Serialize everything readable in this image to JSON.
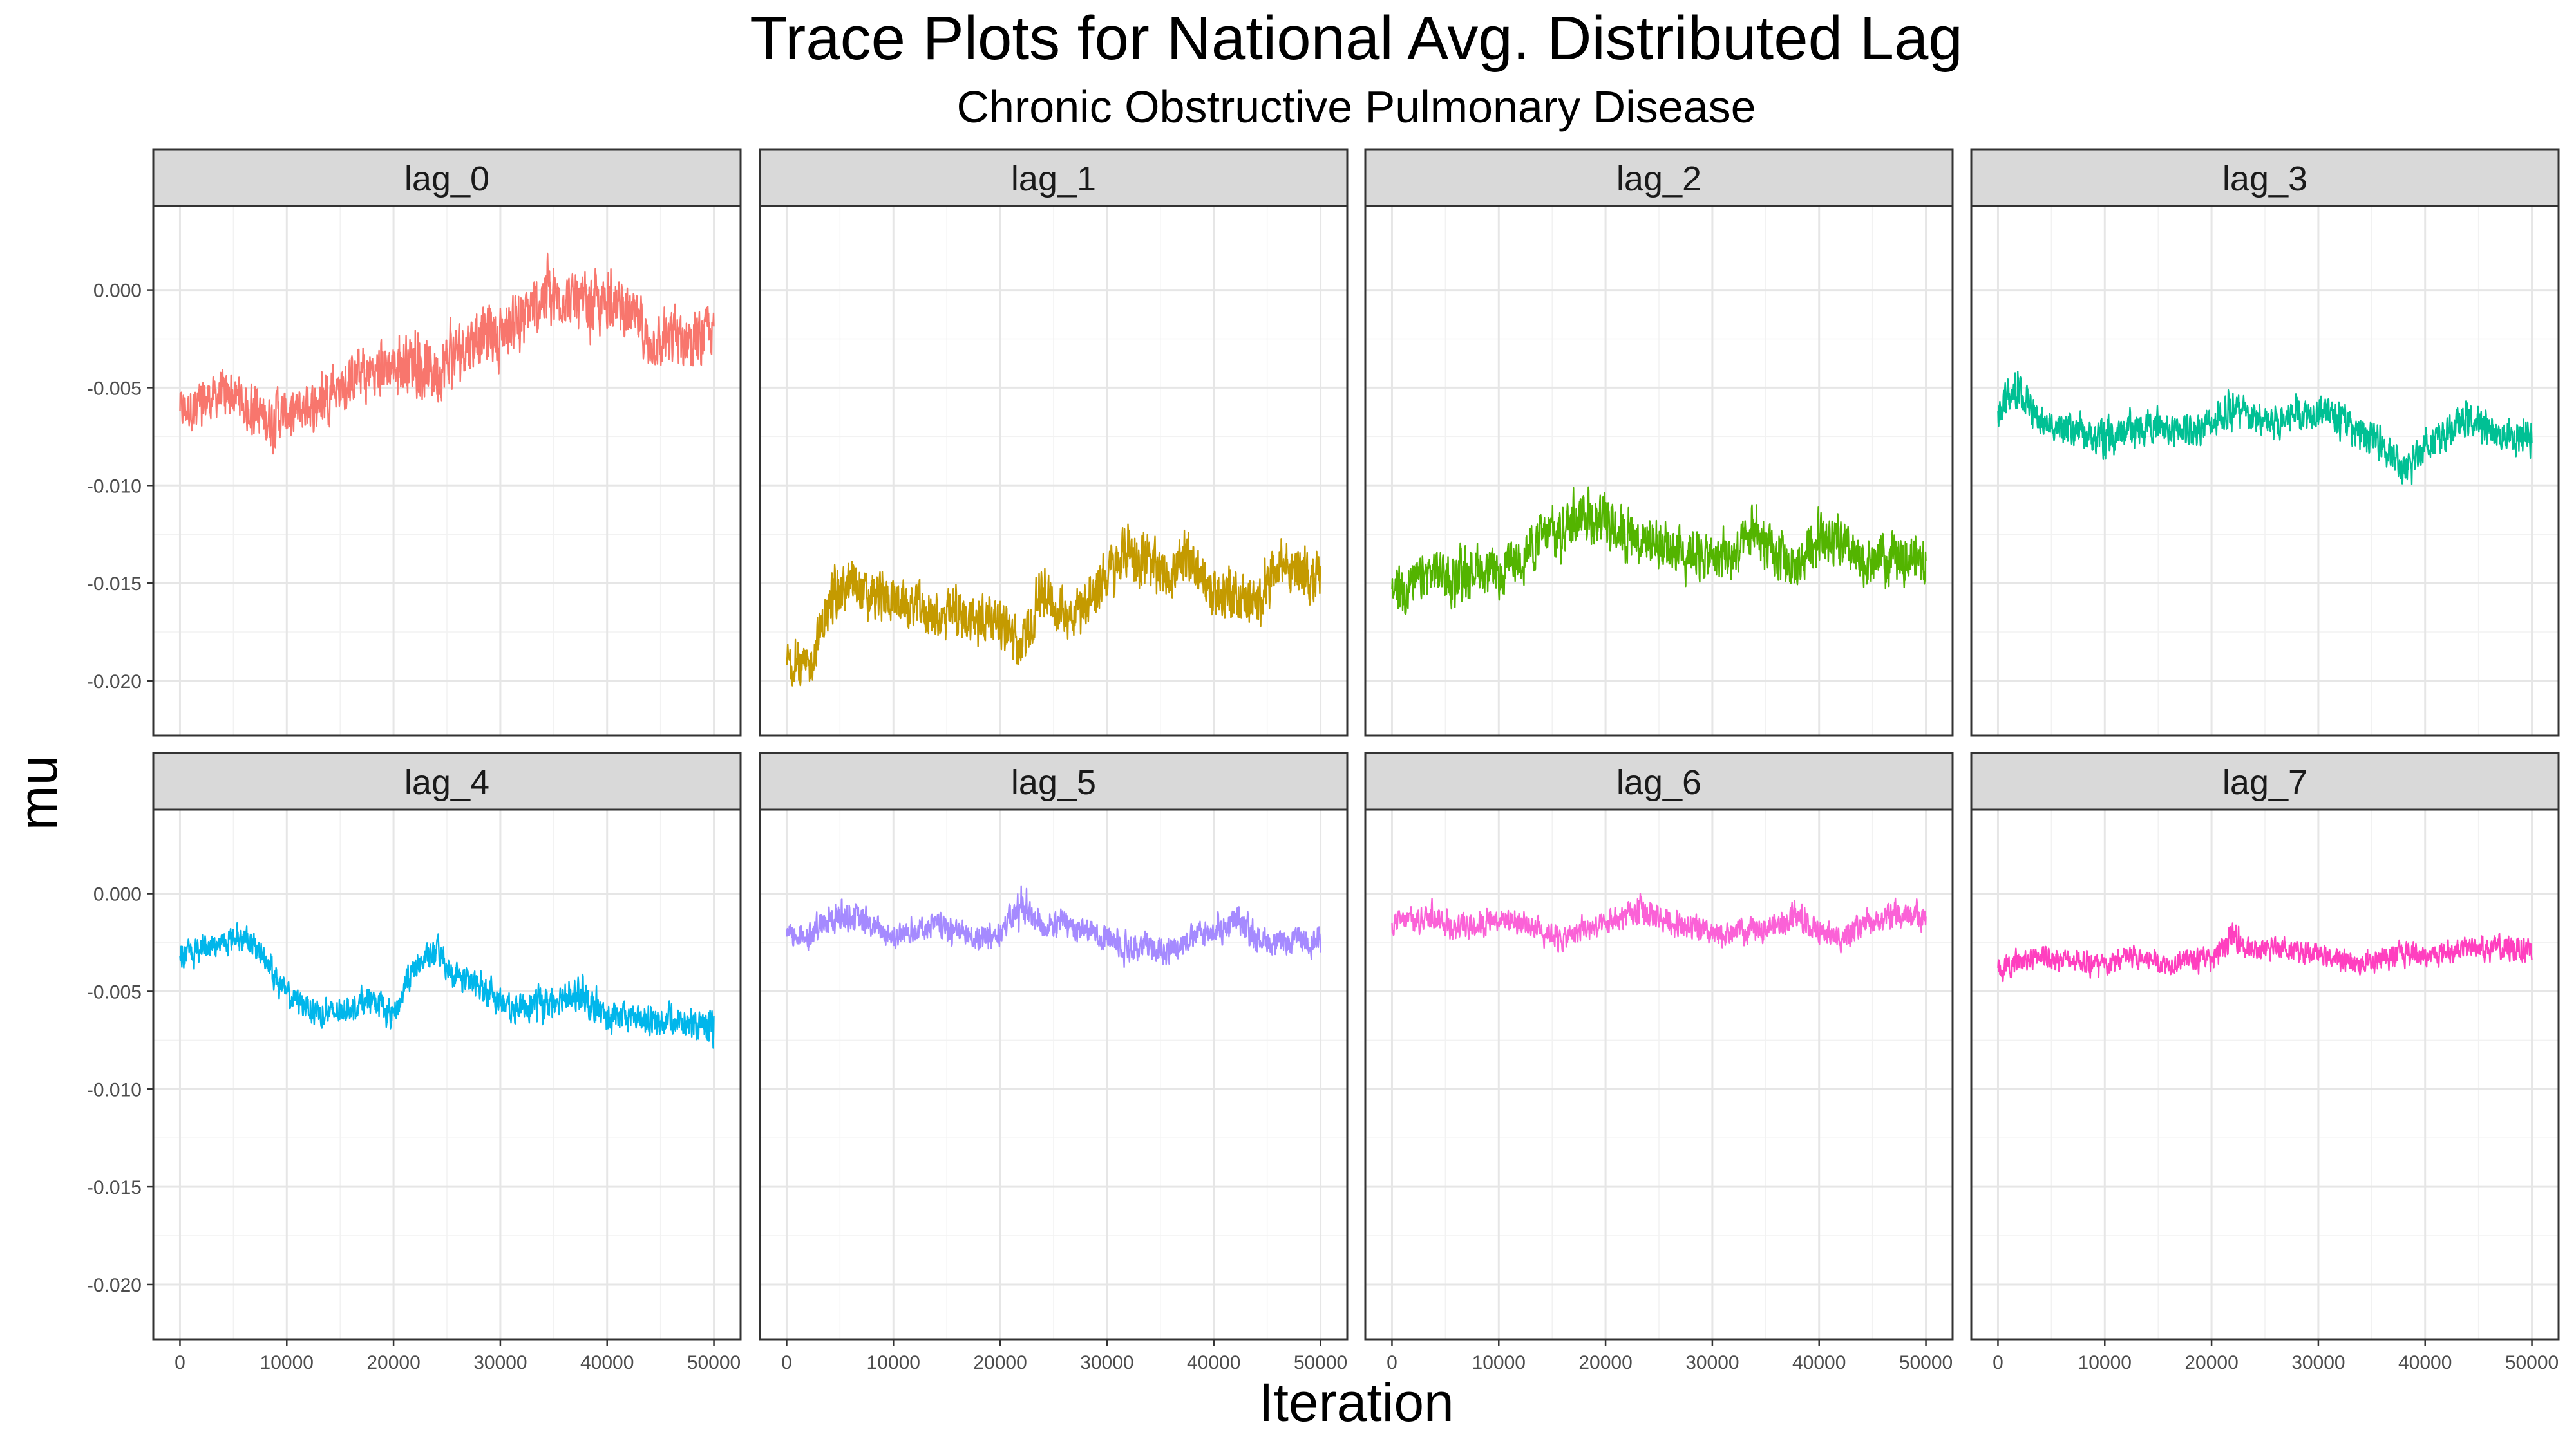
{
  "title": "Trace Plots for National Avg. Distributed Lag",
  "subtitle": "Chronic Obstructive Pulmonary Disease",
  "chart_data": {
    "type": "line",
    "layout": "facet-grid 2x4",
    "grid": true,
    "xlabel": "Iteration",
    "ylabel": "mu",
    "xlim": [
      -2500,
      52500
    ],
    "ylim": [
      -0.0228,
      0.0043
    ],
    "xticks": [
      0,
      10000,
      20000,
      30000,
      40000,
      50000
    ],
    "xtick_labels": [
      "0",
      "10000",
      "20000",
      "30000",
      "40000",
      "50000"
    ],
    "yticks": [
      0.0,
      -0.005,
      -0.01,
      -0.015,
      -0.02
    ],
    "ytick_labels": [
      "0.000",
      "-0.005",
      "-0.010",
      "-0.015",
      "-0.020"
    ],
    "series": [
      {
        "name": "lag_0",
        "color": "#F8766D",
        "x": [
          0,
          2000,
          4000,
          6000,
          8000,
          10000,
          12000,
          14000,
          16000,
          18000,
          20000,
          22000,
          24000,
          26000,
          28000,
          30000,
          32000,
          34000,
          36000,
          38000,
          40000,
          42000,
          44000,
          46000,
          48000,
          50000
        ],
        "mean": [
          -0.0062,
          -0.0058,
          -0.0053,
          -0.0057,
          -0.0066,
          -0.0063,
          -0.006,
          -0.0052,
          -0.0046,
          -0.0041,
          -0.0039,
          -0.0036,
          -0.0042,
          -0.003,
          -0.0023,
          -0.0022,
          -0.0014,
          -0.0003,
          -0.0003,
          -0.0011,
          -0.0006,
          -0.0012,
          -0.0027,
          -0.0024,
          -0.0023,
          -0.0022
        ],
        "min": [
          -0.0083,
          -0.008,
          -0.0075,
          -0.0079,
          -0.0095,
          -0.0088,
          -0.0084,
          -0.0074,
          -0.0069,
          -0.0064,
          -0.0065,
          -0.0066,
          -0.0077,
          -0.0058,
          -0.0055,
          -0.0051,
          -0.0041,
          -0.0033,
          -0.003,
          -0.0037,
          -0.0032,
          -0.0038,
          -0.0052,
          -0.0056,
          -0.0051,
          -0.0044
        ],
        "max": [
          -0.004,
          -0.0036,
          -0.0032,
          -0.0036,
          -0.0043,
          -0.004,
          -0.0038,
          -0.003,
          -0.0022,
          -0.0016,
          -0.0011,
          -0.0006,
          -0.001,
          -0.0002,
          0.0005,
          0.0007,
          0.0011,
          0.0028,
          0.0022,
          0.0016,
          0.0021,
          0.0016,
          -0.0003,
          0.0002,
          0.0002,
          0.0001
        ]
      },
      {
        "name": "lag_1",
        "color": "#C49A00",
        "x": [
          0,
          2000,
          4000,
          6000,
          8000,
          10000,
          12000,
          14000,
          16000,
          18000,
          20000,
          22000,
          24000,
          26000,
          28000,
          30000,
          32000,
          34000,
          36000,
          38000,
          40000,
          42000,
          44000,
          46000,
          48000,
          50000
        ],
        "mean": [
          -0.0188,
          -0.0195,
          -0.016,
          -0.0152,
          -0.0158,
          -0.0158,
          -0.0163,
          -0.0169,
          -0.0166,
          -0.017,
          -0.0167,
          -0.0182,
          -0.0155,
          -0.0165,
          -0.016,
          -0.0147,
          -0.0133,
          -0.0143,
          -0.0145,
          -0.0138,
          -0.0155,
          -0.0155,
          -0.016,
          -0.014,
          -0.0145,
          -0.0148
        ],
        "min": [
          -0.0205,
          -0.0218,
          -0.0182,
          -0.0175,
          -0.018,
          -0.0181,
          -0.0184,
          -0.019,
          -0.0188,
          -0.0192,
          -0.0188,
          -0.0205,
          -0.0177,
          -0.0187,
          -0.0182,
          -0.017,
          -0.0158,
          -0.0167,
          -0.0167,
          -0.0162,
          -0.0177,
          -0.0179,
          -0.0182,
          -0.0162,
          -0.0168,
          -0.0172
        ],
        "max": [
          -0.017,
          -0.0172,
          -0.0135,
          -0.0125,
          -0.0135,
          -0.0135,
          -0.014,
          -0.0147,
          -0.0144,
          -0.0148,
          -0.0145,
          -0.016,
          -0.013,
          -0.0142,
          -0.0137,
          -0.0125,
          -0.0102,
          -0.012,
          -0.0122,
          -0.0113,
          -0.0132,
          -0.0131,
          -0.0138,
          -0.0118,
          -0.0122,
          -0.0126
        ]
      },
      {
        "name": "lag_2",
        "color": "#53B400",
        "x": [
          0,
          2000,
          4000,
          6000,
          8000,
          10000,
          12000,
          14000,
          16000,
          18000,
          20000,
          22000,
          24000,
          26000,
          28000,
          30000,
          32000,
          34000,
          36000,
          38000,
          40000,
          42000,
          44000,
          46000,
          48000,
          50000
        ],
        "mean": [
          -0.0153,
          -0.015,
          -0.0143,
          -0.0148,
          -0.0141,
          -0.0147,
          -0.0137,
          -0.0126,
          -0.0122,
          -0.0112,
          -0.0118,
          -0.0125,
          -0.0128,
          -0.0132,
          -0.0133,
          -0.0137,
          -0.0136,
          -0.0123,
          -0.0138,
          -0.0142,
          -0.0125,
          -0.0131,
          -0.014,
          -0.0138,
          -0.0135,
          -0.014
        ],
        "min": [
          -0.0176,
          -0.0173,
          -0.0165,
          -0.017,
          -0.0163,
          -0.017,
          -0.016,
          -0.015,
          -0.0146,
          -0.0136,
          -0.014,
          -0.0148,
          -0.015,
          -0.0155,
          -0.0156,
          -0.016,
          -0.0159,
          -0.0146,
          -0.0162,
          -0.0166,
          -0.0148,
          -0.0154,
          -0.0163,
          -0.016,
          -0.0158,
          -0.0162
        ],
        "max": [
          -0.013,
          -0.0128,
          -0.0121,
          -0.0125,
          -0.0118,
          -0.0124,
          -0.0115,
          -0.0103,
          -0.0098,
          -0.009,
          -0.0096,
          -0.0102,
          -0.0104,
          -0.011,
          -0.0111,
          -0.0115,
          -0.0113,
          -0.01,
          -0.0115,
          -0.012,
          -0.0102,
          -0.0108,
          -0.0117,
          -0.0116,
          -0.0112,
          -0.0117
        ]
      },
      {
        "name": "lag_3",
        "color": "#00C094",
        "x": [
          0,
          2000,
          4000,
          6000,
          8000,
          10000,
          12000,
          14000,
          16000,
          18000,
          20000,
          22000,
          24000,
          26000,
          28000,
          30000,
          32000,
          34000,
          36000,
          38000,
          40000,
          42000,
          44000,
          46000,
          48000,
          50000
        ],
        "mean": [
          -0.0062,
          -0.0052,
          -0.0068,
          -0.007,
          -0.0073,
          -0.0076,
          -0.0071,
          -0.0069,
          -0.0072,
          -0.007,
          -0.0068,
          -0.0062,
          -0.0066,
          -0.0069,
          -0.0064,
          -0.0062,
          -0.0066,
          -0.0073,
          -0.0078,
          -0.0093,
          -0.0079,
          -0.0073,
          -0.0067,
          -0.0072,
          -0.0076,
          -0.0075
        ],
        "min": [
          -0.0077,
          -0.0066,
          -0.0082,
          -0.0084,
          -0.0088,
          -0.0097,
          -0.0086,
          -0.0084,
          -0.0087,
          -0.0085,
          -0.0083,
          -0.0077,
          -0.0081,
          -0.0084,
          -0.0079,
          -0.0077,
          -0.0081,
          -0.0088,
          -0.0095,
          -0.0111,
          -0.0094,
          -0.0088,
          -0.0082,
          -0.0087,
          -0.0092,
          -0.009
        ],
        "max": [
          -0.0047,
          -0.0032,
          -0.0054,
          -0.0056,
          -0.0058,
          -0.0061,
          -0.0057,
          -0.0054,
          -0.0057,
          -0.0055,
          -0.0052,
          -0.0042,
          -0.0051,
          -0.0054,
          -0.0045,
          -0.0047,
          -0.0051,
          -0.0058,
          -0.0063,
          -0.0078,
          -0.0064,
          -0.0058,
          -0.0046,
          -0.0057,
          -0.0061,
          -0.0055
        ]
      },
      {
        "name": "lag_4",
        "color": "#00B6EB",
        "x": [
          0,
          2000,
          4000,
          6000,
          8000,
          10000,
          12000,
          14000,
          16000,
          18000,
          20000,
          22000,
          24000,
          26000,
          28000,
          30000,
          32000,
          34000,
          36000,
          38000,
          40000,
          42000,
          44000,
          46000,
          48000,
          50000
        ],
        "mean": [
          -0.0032,
          -0.0028,
          -0.0025,
          -0.0022,
          -0.0033,
          -0.0052,
          -0.0058,
          -0.0062,
          -0.0058,
          -0.0055,
          -0.0062,
          -0.0038,
          -0.003,
          -0.0042,
          -0.0048,
          -0.0055,
          -0.0058,
          -0.0055,
          -0.0052,
          -0.0057,
          -0.0063,
          -0.0062,
          -0.0065,
          -0.0064,
          -0.0068,
          -0.0068
        ],
        "min": [
          -0.0043,
          -0.0039,
          -0.0036,
          -0.0033,
          -0.0045,
          -0.0065,
          -0.007,
          -0.0075,
          -0.007,
          -0.0067,
          -0.0075,
          -0.005,
          -0.0041,
          -0.0054,
          -0.006,
          -0.0067,
          -0.0071,
          -0.0078,
          -0.0065,
          -0.0069,
          -0.0076,
          -0.0075,
          -0.0078,
          -0.0078,
          -0.008,
          -0.0086
        ],
        "max": [
          -0.002,
          -0.0016,
          -0.0014,
          -0.0008,
          -0.0021,
          -0.004,
          -0.0045,
          -0.0048,
          -0.0045,
          -0.0043,
          -0.0049,
          -0.0025,
          -0.0015,
          -0.0029,
          -0.0035,
          -0.0042,
          -0.0045,
          -0.0042,
          -0.0039,
          -0.0035,
          -0.005,
          -0.0049,
          -0.0052,
          -0.0051,
          -0.0055,
          -0.0053
        ]
      },
      {
        "name": "lag_5",
        "color": "#A58AFF",
        "x": [
          0,
          2000,
          4000,
          6000,
          8000,
          10000,
          12000,
          14000,
          16000,
          18000,
          20000,
          22000,
          24000,
          26000,
          28000,
          30000,
          32000,
          34000,
          36000,
          38000,
          40000,
          42000,
          44000,
          46000,
          48000,
          50000
        ],
        "mean": [
          -0.0022,
          -0.0021,
          -0.0015,
          -0.0012,
          -0.0017,
          -0.0022,
          -0.0018,
          -0.0016,
          -0.002,
          -0.0023,
          -0.0019,
          -0.0008,
          -0.0018,
          -0.0015,
          -0.0019,
          -0.0022,
          -0.0027,
          -0.0028,
          -0.0027,
          -0.0022,
          -0.0019,
          -0.0015,
          -0.0022,
          -0.0026,
          -0.0024,
          -0.0025
        ],
        "min": [
          -0.0033,
          -0.0032,
          -0.0027,
          -0.0024,
          -0.0029,
          -0.0036,
          -0.003,
          -0.0028,
          -0.0032,
          -0.0035,
          -0.0031,
          -0.0022,
          -0.003,
          -0.0027,
          -0.0031,
          -0.0034,
          -0.0043,
          -0.004,
          -0.0041,
          -0.0034,
          -0.0031,
          -0.0027,
          -0.0034,
          -0.0038,
          -0.0036,
          -0.0039
        ],
        "max": [
          -0.001,
          -0.0009,
          0.0001,
          0.0006,
          -0.0005,
          -0.001,
          -0.0006,
          -0.0004,
          -0.0008,
          -0.0011,
          -0.0007,
          0.0012,
          -0.0006,
          -0.0003,
          -0.0007,
          -0.001,
          -0.0015,
          -0.0016,
          -0.0015,
          -0.001,
          -0.0007,
          0.0,
          -0.001,
          -0.0014,
          -0.0012,
          -0.0008
        ]
      },
      {
        "name": "lag_6",
        "color": "#FB61D7",
        "x": [
          0,
          2000,
          4000,
          6000,
          8000,
          10000,
          12000,
          14000,
          16000,
          18000,
          20000,
          22000,
          24000,
          26000,
          28000,
          30000,
          32000,
          34000,
          36000,
          38000,
          40000,
          42000,
          44000,
          46000,
          48000,
          50000
        ],
        "mean": [
          -0.0015,
          -0.0013,
          -0.0012,
          -0.0017,
          -0.0016,
          -0.0012,
          -0.0015,
          -0.0018,
          -0.0023,
          -0.0018,
          -0.0016,
          -0.0011,
          -0.0012,
          -0.0015,
          -0.0017,
          -0.0021,
          -0.002,
          -0.0018,
          -0.0016,
          -0.0013,
          -0.0019,
          -0.0022,
          -0.0016,
          -0.0013,
          -0.0011,
          -0.0012
        ],
        "min": [
          -0.0026,
          -0.0024,
          -0.0023,
          -0.0028,
          -0.0027,
          -0.0023,
          -0.0026,
          -0.0029,
          -0.0036,
          -0.0029,
          -0.0027,
          -0.0022,
          -0.0023,
          -0.0026,
          -0.0028,
          -0.0036,
          -0.0031,
          -0.0029,
          -0.0027,
          -0.0024,
          -0.003,
          -0.0037,
          -0.0027,
          -0.0024,
          -0.0022,
          -0.0023
        ],
        "max": [
          -0.0004,
          -0.0002,
          0.0002,
          -0.0006,
          -0.0005,
          -0.0001,
          -0.0004,
          -0.0007,
          -0.0012,
          -0.0007,
          -0.0005,
          0.0,
          0.0008,
          -0.0004,
          -0.0006,
          -0.001,
          -0.0009,
          -0.0007,
          -0.0005,
          0.0002,
          -0.0008,
          -0.0011,
          -0.0005,
          -0.0002,
          0.0002,
          -0.0001
        ]
      },
      {
        "name": "lag_7",
        "color": "#FF3FBF",
        "x": [
          0,
          2000,
          4000,
          6000,
          8000,
          10000,
          12000,
          14000,
          16000,
          18000,
          20000,
          22000,
          24000,
          26000,
          28000,
          30000,
          32000,
          34000,
          36000,
          38000,
          40000,
          42000,
          44000,
          46000,
          48000,
          50000
        ],
        "mean": [
          -0.0038,
          -0.0035,
          -0.0031,
          -0.0033,
          -0.0035,
          -0.0037,
          -0.0032,
          -0.0034,
          -0.0036,
          -0.0034,
          -0.0033,
          -0.0022,
          -0.003,
          -0.0027,
          -0.0029,
          -0.0031,
          -0.0034,
          -0.0036,
          -0.0033,
          -0.003,
          -0.0032,
          -0.003,
          -0.0027,
          -0.0028,
          -0.003,
          -0.0028
        ],
        "min": [
          -0.0048,
          -0.0048,
          -0.0041,
          -0.0043,
          -0.0045,
          -0.005,
          -0.0042,
          -0.0044,
          -0.0046,
          -0.0044,
          -0.0043,
          -0.0034,
          -0.004,
          -0.0037,
          -0.0039,
          -0.0041,
          -0.0044,
          -0.0048,
          -0.0043,
          -0.004,
          -0.0042,
          -0.004,
          -0.0037,
          -0.0038,
          -0.004,
          -0.0038
        ],
        "max": [
          -0.0027,
          -0.0025,
          -0.0021,
          -0.0023,
          -0.0025,
          -0.0027,
          -0.0022,
          -0.0024,
          -0.0026,
          -0.0024,
          -0.0023,
          -0.0008,
          -0.002,
          -0.0017,
          -0.0019,
          -0.0021,
          -0.0024,
          -0.0026,
          -0.0023,
          -0.0018,
          -0.0022,
          -0.002,
          -0.0017,
          -0.0017,
          -0.0012,
          -0.0014
        ]
      }
    ]
  }
}
